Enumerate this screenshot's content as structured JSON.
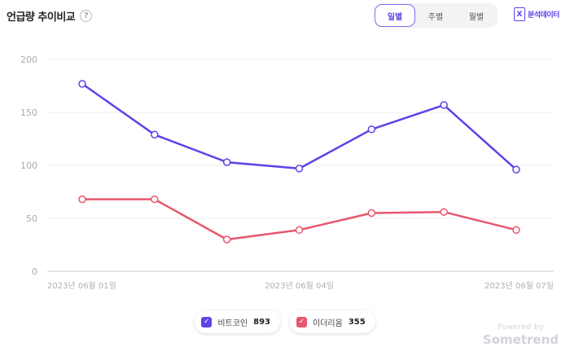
{
  "header": {
    "title": "언급량 추이비교",
    "help_glyph": "?",
    "period_tabs": [
      "일별",
      "주별",
      "월별"
    ],
    "active_tab": "일별",
    "export_label": "분석데이터",
    "export_glyph": "X"
  },
  "chart_data": {
    "type": "line",
    "x": [
      "2023-06-01",
      "2023-06-02",
      "2023-06-03",
      "2023-06-04",
      "2023-06-05",
      "2023-06-06",
      "2023-06-07"
    ],
    "x_tick_labels": [
      "2023년 06월 01일",
      "2023년 06월 04일",
      "2023년 06월 07일"
    ],
    "series": [
      {
        "name": "비트코인",
        "color": "#5a44e8",
        "values": [
          177,
          129,
          103,
          97,
          134,
          157,
          96
        ]
      },
      {
        "name": "이더리움",
        "color": "#e8566e",
        "values": [
          68,
          68,
          30,
          39,
          55,
          56,
          39
        ]
      }
    ],
    "ylim": [
      0,
      200
    ],
    "y_ticks": [
      0,
      50,
      100,
      150,
      200
    ],
    "grid": true
  },
  "legend": {
    "items": [
      {
        "name": "비트코인",
        "count": "893",
        "color": "#5a44e8",
        "checked": true
      },
      {
        "name": "이더리움",
        "count": "355",
        "color": "#e8566e",
        "checked": true
      }
    ],
    "check_glyph": "✓"
  },
  "branding": {
    "powered_by": "Powered by",
    "brand": "Sometrend"
  }
}
